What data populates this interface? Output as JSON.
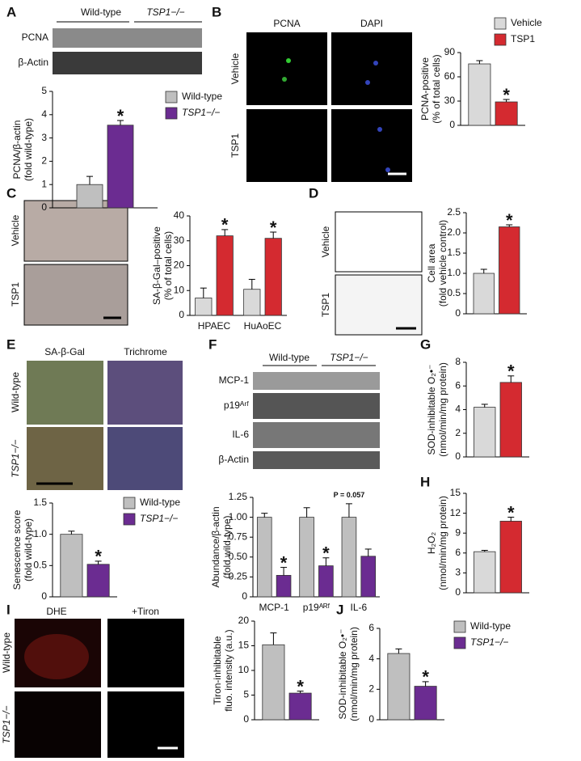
{
  "panel_letters": [
    "A",
    "B",
    "C",
    "D",
    "E",
    "F",
    "G",
    "H",
    "I",
    "J"
  ],
  "panel_A": {
    "groups": [
      "Wild-type",
      "TSP1−/−"
    ],
    "rows": [
      "PCNA",
      "β-Actin"
    ]
  },
  "panel_B": {
    "columns": [
      "PCNA",
      "DAPI"
    ],
    "rows": [
      "Vehicle",
      "TSP1"
    ]
  },
  "panel_C": {
    "rows": [
      "Vehicle",
      "TSP1"
    ]
  },
  "panel_D": {
    "rows": [
      "Vehicle",
      "TSP1"
    ]
  },
  "panel_E": {
    "columns": [
      "SA-β-Gal",
      "Trichrome"
    ],
    "rows": [
      "Wild-type",
      "TSP1−/−"
    ]
  },
  "panel_F": {
    "groups": [
      "Wild-type",
      "TSP1−/−"
    ],
    "rows": [
      "MCP-1",
      "p19ᴬʳᶠ",
      "IL-6",
      "β-Actin"
    ]
  },
  "panel_I": {
    "columns": [
      "DHE",
      "+Tiron"
    ],
    "rows": [
      "Wild-type",
      "TSP1−/−"
    ]
  },
  "chart_data": [
    {
      "type": "bar",
      "ylabel": [
        "PCNA/β-actin",
        "(fold wild-type)"
      ],
      "ylim": [
        0,
        5
      ],
      "yticks": [
        0,
        1,
        2,
        3,
        4,
        5
      ],
      "legend": "right",
      "series": [
        {
          "name": "Wild-type",
          "color": "#bfbfbf",
          "values": [
            1.0
          ],
          "errors": [
            0.35
          ],
          "annotations": [
            null
          ]
        },
        {
          "name": "TSP1−/−",
          "italic": true,
          "color": "#6b2c91",
          "values": [
            3.55
          ],
          "errors": [
            0.2
          ],
          "annotations": [
            "*"
          ]
        }
      ]
    },
    {
      "type": "bar",
      "ylabel": [
        "PCNA-positive",
        "(% of total cells)"
      ],
      "ylim": [
        0,
        90
      ],
      "yticks": [
        0,
        30,
        60,
        90
      ],
      "legend": "top-right",
      "series": [
        {
          "name": "Vehicle",
          "color": "#d9d9d9",
          "values": [
            76
          ],
          "errors": [
            4
          ],
          "annotations": [
            null
          ]
        },
        {
          "name": "TSP1",
          "color": "#d42a30",
          "values": [
            29
          ],
          "errors": [
            3
          ],
          "annotations": [
            "*"
          ]
        }
      ]
    },
    {
      "type": "bar",
      "categories": [
        "HPAEC",
        "HuAoEC"
      ],
      "ylabel": [
        "SA-β-Gal–positive",
        "(% of total cells)"
      ],
      "ylim": [
        0,
        40
      ],
      "yticks": [
        0,
        10,
        20,
        30,
        40
      ],
      "series": [
        {
          "color": "#d9d9d9",
          "values": [
            7,
            10.5
          ],
          "errors": [
            4,
            4
          ],
          "annotations": [
            null,
            null
          ]
        },
        {
          "color": "#d42a30",
          "values": [
            32,
            31
          ],
          "errors": [
            2.5,
            2.5
          ],
          "annotations": [
            "*",
            "*"
          ]
        }
      ]
    },
    {
      "type": "bar",
      "ylabel": [
        "Cell area",
        "(fold vehicle control)"
      ],
      "ylim": [
        0,
        2.5
      ],
      "yticks": [
        0,
        0.5,
        {
          "value": 1,
          "label": "1.0"
        },
        1.5,
        {
          "value": 2,
          "label": "2.0"
        },
        2.5
      ],
      "series": [
        {
          "color": "#d9d9d9",
          "values": [
            1.0
          ],
          "errors": [
            0.1
          ],
          "annotations": [
            null
          ]
        },
        {
          "color": "#d42a30",
          "values": [
            2.15
          ],
          "errors": [
            0.05
          ],
          "annotations": [
            "*"
          ]
        }
      ]
    },
    {
      "type": "bar",
      "ylabel": [
        "Senescence score",
        "(fold wild-type)"
      ],
      "ylim": [
        0,
        1.5
      ],
      "yticks": [
        0,
        0.5,
        {
          "value": 1,
          "label": "1.0"
        },
        1.5
      ],
      "legend": "right",
      "series": [
        {
          "name": "Wild-type",
          "color": "#bfbfbf",
          "values": [
            1.0
          ],
          "errors": [
            0.05
          ],
          "annotations": [
            null
          ]
        },
        {
          "name": "TSP1−/−",
          "italic": true,
          "color": "#6b2c91",
          "values": [
            0.52
          ],
          "errors": [
            0.05
          ],
          "annotations": [
            "*"
          ]
        }
      ]
    },
    {
      "type": "bar",
      "categories": [
        "MCP-1",
        "p19ᴬᴿᶠ",
        "IL-6"
      ],
      "ylabel": [
        "Abundance/β-actin",
        "(fold wild-type)"
      ],
      "ylim": [
        0,
        1.25
      ],
      "yticks": [
        0,
        0.25,
        {
          "value": 0.5,
          "label": "0.50"
        },
        0.75,
        {
          "value": 1,
          "label": "1.00"
        },
        1.25
      ],
      "series": [
        {
          "color": "#bfbfbf",
          "values": [
            1.0,
            1.0,
            1.0
          ],
          "errors": [
            0.05,
            0.12,
            0.17
          ],
          "annotations": [
            null,
            null,
            "P = 0.057"
          ]
        },
        {
          "color": "#6b2c91",
          "values": [
            0.27,
            0.39,
            0.51
          ],
          "errors": [
            0.1,
            0.1,
            0.09
          ],
          "annotations": [
            "*",
            "*",
            null
          ]
        }
      ]
    },
    {
      "type": "bar",
      "ylabel": [
        "SOD-inhibitable O₂•⁻",
        "(nmol/min/mg protein)"
      ],
      "ylim": [
        0,
        8
      ],
      "yticks": [
        0,
        2,
        4,
        6,
        8
      ],
      "series": [
        {
          "color": "#d9d9d9",
          "values": [
            4.2
          ],
          "errors": [
            0.25
          ],
          "annotations": [
            null
          ]
        },
        {
          "color": "#d42a30",
          "values": [
            6.3
          ],
          "errors": [
            0.55
          ],
          "annotations": [
            "*"
          ]
        }
      ]
    },
    {
      "type": "bar",
      "ylabel": [
        "H₂O₂",
        "(nmol/min/mg protein)"
      ],
      "ylim": [
        0,
        15
      ],
      "yticks": [
        0,
        3,
        6,
        9,
        12,
        15
      ],
      "series": [
        {
          "color": "#d9d9d9",
          "values": [
            6.2
          ],
          "errors": [
            0.2
          ],
          "annotations": [
            null
          ]
        },
        {
          "color": "#d42a30",
          "values": [
            10.8
          ],
          "errors": [
            0.6
          ],
          "annotations": [
            "*"
          ]
        }
      ]
    },
    {
      "type": "bar",
      "ylabel": [
        "Tiron-inhibitable",
        "fluo. intensity (a.u.)"
      ],
      "ylim": [
        0,
        20
      ],
      "yticks": [
        0,
        5,
        10,
        15,
        20
      ],
      "series": [
        {
          "color": "#bfbfbf",
          "values": [
            15.2
          ],
          "errors": [
            2.4
          ],
          "annotations": [
            null
          ]
        },
        {
          "color": "#6b2c91",
          "values": [
            5.4
          ],
          "errors": [
            0.4
          ],
          "annotations": [
            "*"
          ]
        }
      ]
    },
    {
      "type": "bar",
      "ylabel": [
        "SOD-inhibitable O₂•⁻",
        "(nmol/min/mg protein)"
      ],
      "ylim": [
        0,
        6
      ],
      "yticks": [
        0,
        2,
        4,
        6
      ],
      "legend": "right",
      "series": [
        {
          "name": "Wild-type",
          "color": "#bfbfbf",
          "values": [
            4.35
          ],
          "errors": [
            0.3
          ],
          "annotations": [
            null
          ]
        },
        {
          "name": "TSP1−/−",
          "italic": true,
          "color": "#6b2c91",
          "values": [
            2.2
          ],
          "errors": [
            0.3
          ],
          "annotations": [
            "*"
          ]
        }
      ]
    }
  ]
}
